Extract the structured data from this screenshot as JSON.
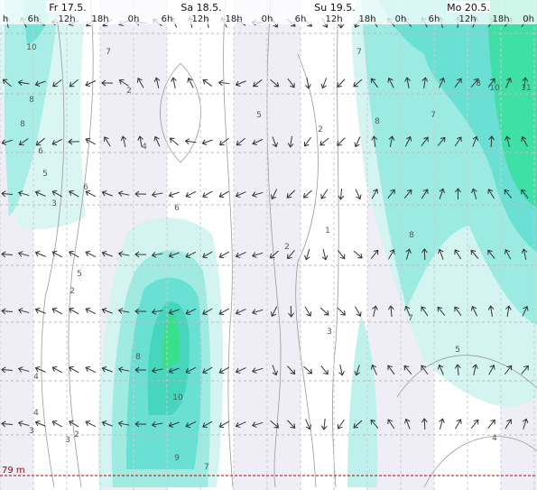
{
  "days": [
    "Fr 17.5.",
    "Sa 18.5.",
    "Su 19.5.",
    "Mo 20.5."
  ],
  "hours": [
    "h",
    "6h",
    "12h",
    "18h",
    "0h",
    "6h",
    "12h",
    "18h",
    "0h",
    "6h",
    "12h",
    "18h",
    "0h",
    "6h",
    "12h",
    "18h",
    "0h"
  ],
  "contour_labels": [
    "10",
    "8",
    "8",
    "6",
    "5",
    "3",
    "2",
    "4",
    "5",
    "7",
    "6",
    "2",
    "4",
    "8",
    "10",
    "9",
    "7",
    "3",
    "2",
    "1",
    "2",
    "5",
    "3",
    "7",
    "8",
    "8",
    "10",
    "11",
    "7",
    "8",
    "7",
    "5",
    "6",
    "4",
    "4",
    "3",
    "2"
  ],
  "elevation_label": "79 m"
}
